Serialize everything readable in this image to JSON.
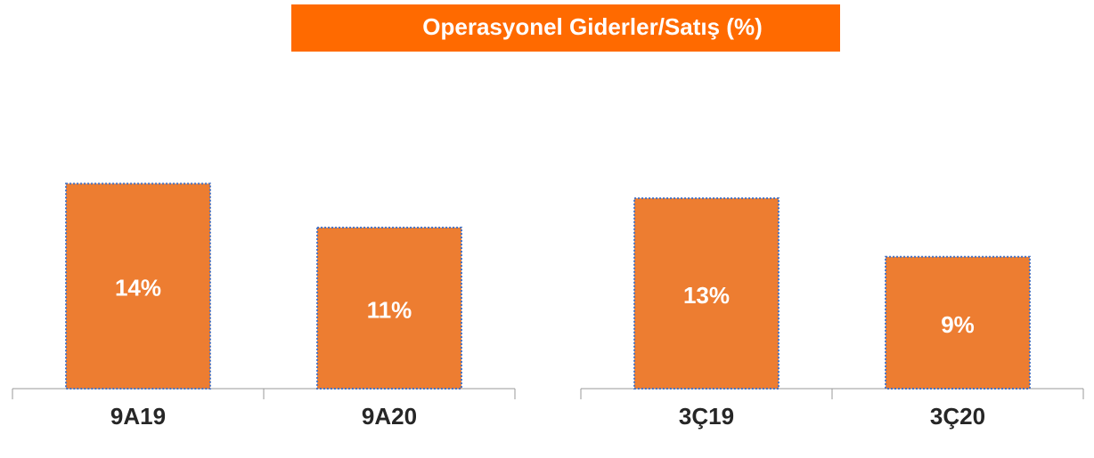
{
  "title": "Operasyonel Giderler/Satış (%)",
  "chart_data": [
    {
      "type": "bar",
      "categories": [
        "9A19",
        "9A20"
      ],
      "values": [
        14,
        11
      ],
      "value_labels": [
        "14%",
        "11%"
      ],
      "color": "#ed7d31",
      "ylim": [
        0,
        15
      ]
    },
    {
      "type": "bar",
      "categories": [
        "3Ç19",
        "3Ç20"
      ],
      "values": [
        13,
        9
      ],
      "value_labels": [
        "13%",
        "9%"
      ],
      "color": "#ed7d31",
      "ylim": [
        0,
        15
      ]
    }
  ]
}
